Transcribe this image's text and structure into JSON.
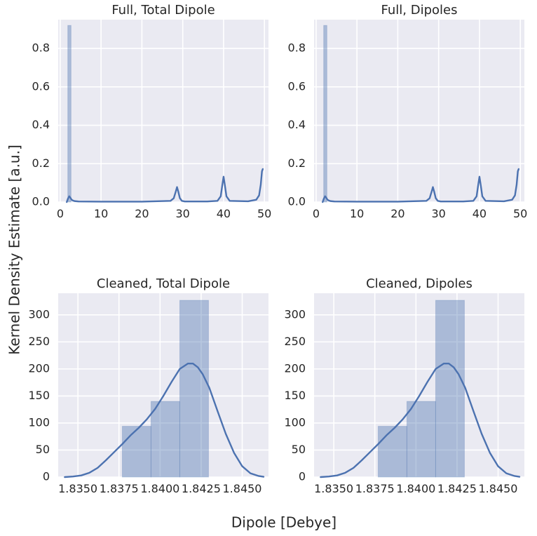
{
  "figure": {
    "xlabel": "Dipole [Debye]",
    "ylabel": "Kernel Density Estimate [a.u.]"
  },
  "colors": {
    "background": "#eaeaf2",
    "grid": "#ffffff",
    "bar": "#4c72b0",
    "line": "#4c72b0"
  },
  "chart_data": [
    {
      "type": "bar",
      "title": "Full, Total Dipole",
      "xlim": [
        -0.5,
        51.0
      ],
      "ylim": [
        0,
        0.95
      ],
      "xticks": [
        0,
        10,
        20,
        30,
        40,
        50
      ],
      "xtick_labels": [
        "0",
        "10",
        "20",
        "30",
        "40",
        "50"
      ],
      "yticks": [
        0.0,
        0.2,
        0.4,
        0.6,
        0.8
      ],
      "ytick_labels": [
        "0.0",
        "0.2",
        "0.4",
        "0.6",
        "0.8"
      ],
      "bars": [
        {
          "x0": 1.85,
          "x1": 2.65,
          "height": 0.92
        }
      ],
      "kde": {
        "x": [
          1.6,
          1.9,
          2.2,
          2.5,
          2.8,
          3.1,
          3.5,
          4.5,
          10,
          20,
          27.0,
          27.8,
          28.3,
          28.6,
          28.9,
          29.3,
          29.8,
          30.5,
          36,
          38.5,
          39.3,
          39.7,
          40.0,
          40.3,
          40.7,
          41.5,
          46,
          48.0,
          48.7,
          49.1,
          49.4,
          49.6
        ],
        "y": [
          0.0,
          0.018,
          0.03,
          0.022,
          0.012,
          0.008,
          0.005,
          0.003,
          0.002,
          0.002,
          0.006,
          0.02,
          0.055,
          0.078,
          0.055,
          0.02,
          0.006,
          0.003,
          0.003,
          0.006,
          0.03,
          0.09,
          0.132,
          0.09,
          0.03,
          0.006,
          0.004,
          0.012,
          0.035,
          0.09,
          0.16,
          0.172
        ]
      }
    },
    {
      "type": "bar",
      "title": "Full, Dipoles",
      "xlim": [
        -0.5,
        51.0
      ],
      "ylim": [
        0,
        0.95
      ],
      "xticks": [
        0,
        10,
        20,
        30,
        40,
        50
      ],
      "xtick_labels": [
        "0",
        "10",
        "20",
        "30",
        "40",
        "50"
      ],
      "yticks": [
        0.0,
        0.2,
        0.4,
        0.6,
        0.8
      ],
      "ytick_labels": [
        "0.0",
        "0.2",
        "0.4",
        "0.6",
        "0.8"
      ],
      "bars": [
        {
          "x0": 1.85,
          "x1": 2.65,
          "height": 0.92
        }
      ],
      "kde": {
        "x": [
          1.6,
          1.9,
          2.2,
          2.5,
          2.8,
          3.1,
          3.5,
          4.5,
          10,
          20,
          27.0,
          27.8,
          28.3,
          28.6,
          28.9,
          29.3,
          29.8,
          30.5,
          36,
          38.5,
          39.3,
          39.7,
          40.0,
          40.3,
          40.7,
          41.5,
          46,
          48.0,
          48.7,
          49.1,
          49.4,
          49.6
        ],
        "y": [
          0.0,
          0.018,
          0.03,
          0.022,
          0.012,
          0.008,
          0.005,
          0.003,
          0.002,
          0.002,
          0.006,
          0.02,
          0.055,
          0.078,
          0.055,
          0.02,
          0.006,
          0.003,
          0.003,
          0.006,
          0.03,
          0.09,
          0.132,
          0.09,
          0.03,
          0.006,
          0.004,
          0.012,
          0.035,
          0.09,
          0.16,
          0.172
        ]
      }
    },
    {
      "type": "bar",
      "title": "Cleaned, Total Dipole",
      "xlim": [
        1.8338,
        1.8466
      ],
      "ylim": [
        0,
        340
      ],
      "xticks": [
        1.835,
        1.8375,
        1.84,
        1.8425,
        1.845
      ],
      "xtick_labels": [
        "1.8350",
        "1.8375",
        "1.8400",
        "1.8425",
        "1.8450"
      ],
      "yticks": [
        0,
        50,
        100,
        150,
        200,
        250,
        300
      ],
      "ytick_labels": [
        "0",
        "50",
        "100",
        "150",
        "200",
        "250",
        "300"
      ],
      "bars": [
        {
          "x0": 1.8377,
          "x1": 1.83945,
          "height": 94
        },
        {
          "x0": 1.83945,
          "x1": 1.8412,
          "height": 140
        },
        {
          "x0": 1.8412,
          "x1": 1.84295,
          "height": 327
        }
      ],
      "kde": {
        "x": [
          1.8342,
          1.8347,
          1.8352,
          1.8357,
          1.8362,
          1.8367,
          1.8372,
          1.8377,
          1.8382,
          1.8387,
          1.8392,
          1.8397,
          1.8402,
          1.8407,
          1.8412,
          1.8417,
          1.842,
          1.8423,
          1.8426,
          1.843,
          1.8435,
          1.844,
          1.8445,
          1.845,
          1.8455,
          1.846,
          1.8463
        ],
        "y": [
          0,
          1,
          3,
          8,
          17,
          31,
          46,
          61,
          77,
          91,
          107,
          126,
          150,
          176,
          200,
          210,
          210,
          203,
          190,
          165,
          122,
          80,
          45,
          20,
          7,
          2,
          0.5
        ]
      }
    },
    {
      "type": "bar",
      "title": "Cleaned, Dipoles",
      "xlim": [
        1.8338,
        1.8466
      ],
      "ylim": [
        0,
        340
      ],
      "xticks": [
        1.835,
        1.8375,
        1.84,
        1.8425,
        1.845
      ],
      "xtick_labels": [
        "1.8350",
        "1.8375",
        "1.8400",
        "1.8425",
        "1.8450"
      ],
      "yticks": [
        0,
        50,
        100,
        150,
        200,
        250,
        300
      ],
      "ytick_labels": [
        "0",
        "50",
        "100",
        "150",
        "200",
        "250",
        "300"
      ],
      "bars": [
        {
          "x0": 1.8377,
          "x1": 1.83945,
          "height": 94
        },
        {
          "x0": 1.83945,
          "x1": 1.8412,
          "height": 140
        },
        {
          "x0": 1.8412,
          "x1": 1.84295,
          "height": 327
        }
      ],
      "kde": {
        "x": [
          1.8342,
          1.8347,
          1.8352,
          1.8357,
          1.8362,
          1.8367,
          1.8372,
          1.8377,
          1.8382,
          1.8387,
          1.8392,
          1.8397,
          1.8402,
          1.8407,
          1.8412,
          1.8417,
          1.842,
          1.8423,
          1.8426,
          1.843,
          1.8435,
          1.844,
          1.8445,
          1.845,
          1.8455,
          1.846,
          1.8463
        ],
        "y": [
          0,
          1,
          3,
          8,
          17,
          31,
          46,
          61,
          77,
          91,
          107,
          126,
          150,
          176,
          200,
          210,
          210,
          203,
          190,
          165,
          122,
          80,
          45,
          20,
          7,
          2,
          0.5
        ]
      }
    }
  ]
}
